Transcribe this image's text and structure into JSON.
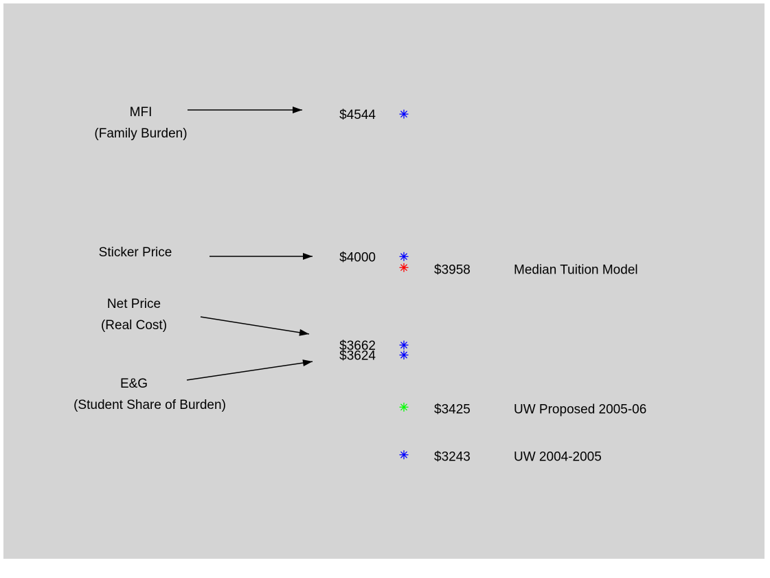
{
  "chart_data": {
    "type": "scatter",
    "values": [
      4544,
      4000,
      3958,
      3662,
      3624,
      3425,
      3243
    ],
    "value_labels": [
      "$4544",
      "$4000",
      "$3958",
      "$3662",
      "$3624",
      "$3425",
      "$3243"
    ],
    "colors": [
      "#0000ff",
      "#0000ff",
      "#ff0000",
      "#0000ff",
      "#0000ff",
      "#00ff00",
      "#0000ff"
    ],
    "names": [
      null,
      null,
      "Median Tuition Model",
      null,
      null,
      "UW Proposed 2005-06",
      "UW 2004-2005"
    ],
    "ylim": [
      2900,
      4900
    ],
    "annotations": [
      {
        "lines": [
          "MFI",
          "(Family Burden)"
        ],
        "point": 0
      },
      {
        "lines": [
          "Sticker Price"
        ],
        "point": 1
      },
      {
        "lines": [
          "Net Price",
          "(Real Cost)"
        ],
        "point": 3
      },
      {
        "lines": [
          "E&G",
          "(Student Share of Burden)"
        ],
        "point": 4
      }
    ]
  }
}
